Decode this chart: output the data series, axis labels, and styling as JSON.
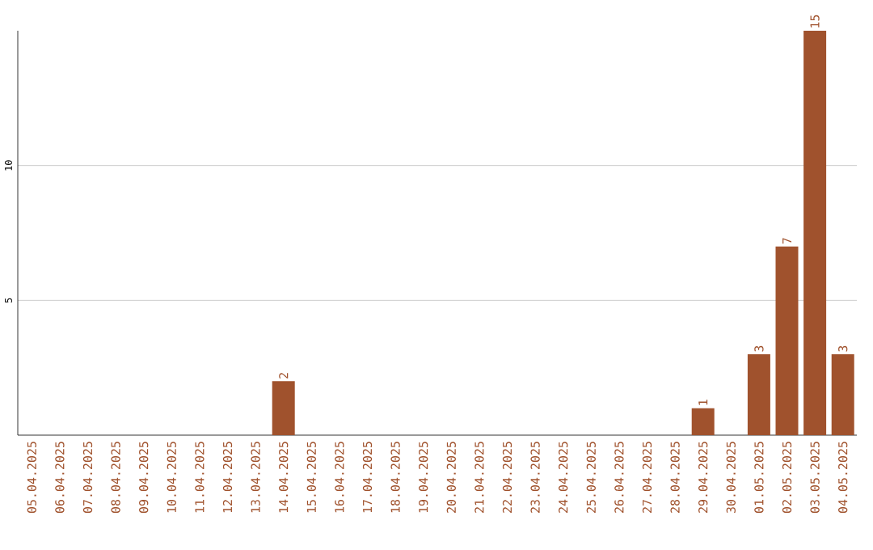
{
  "chart_data": {
    "type": "bar",
    "categories": [
      "05.04.2025",
      "06.04.2025",
      "07.04.2025",
      "08.04.2025",
      "09.04.2025",
      "10.04.2025",
      "11.04.2025",
      "12.04.2025",
      "13.04.2025",
      "14.04.2025",
      "15.04.2025",
      "16.04.2025",
      "17.04.2025",
      "18.04.2025",
      "19.04.2025",
      "20.04.2025",
      "21.04.2025",
      "22.04.2025",
      "23.04.2025",
      "24.04.2025",
      "25.04.2025",
      "26.04.2025",
      "27.04.2025",
      "28.04.2025",
      "29.04.2025",
      "30.04.2025",
      "01.05.2025",
      "02.05.2025",
      "03.05.2025",
      "04.05.2025"
    ],
    "values": [
      0,
      0,
      0,
      0,
      0,
      0,
      0,
      0,
      0,
      2,
      0,
      0,
      0,
      0,
      0,
      0,
      0,
      0,
      0,
      0,
      0,
      0,
      0,
      0,
      1,
      0,
      3,
      7,
      15,
      3
    ],
    "value_labels": [
      null,
      null,
      null,
      null,
      null,
      null,
      null,
      null,
      null,
      "2",
      null,
      null,
      null,
      null,
      null,
      null,
      null,
      null,
      null,
      null,
      null,
      null,
      null,
      null,
      "1",
      null,
      "3",
      "7",
      "15",
      "3"
    ],
    "color": "#a0522d",
    "ylim": [
      0,
      15
    ],
    "yticks": [
      5,
      10
    ],
    "grid": "y"
  }
}
